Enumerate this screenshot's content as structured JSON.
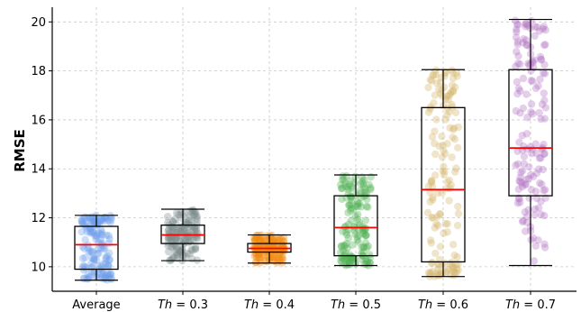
{
  "chart_data": {
    "type": "box",
    "ylabel": "RMSE",
    "xlabel": "",
    "ylim": [
      9,
      20.6
    ],
    "yticks": [
      10,
      12,
      14,
      16,
      18,
      20
    ],
    "grid": true,
    "categories": [
      {
        "prefix": "",
        "label": "Average"
      },
      {
        "prefix": "Th",
        "label": " = 0.3"
      },
      {
        "prefix": "Th",
        "label": " = 0.4"
      },
      {
        "prefix": "Th",
        "label": " = 0.5"
      },
      {
        "prefix": "Th",
        "label": " = 0.6"
      },
      {
        "prefix": "Th",
        "label": " = 0.7"
      }
    ],
    "boxes": [
      {
        "min": 9.45,
        "q1": 9.9,
        "median": 10.9,
        "q3": 11.65,
        "max": 12.1,
        "color": "#6d9eeb"
      },
      {
        "min": 10.25,
        "q1": 10.95,
        "median": 11.3,
        "q3": 11.7,
        "max": 12.35,
        "color": "#7f8c8d"
      },
      {
        "min": 10.15,
        "q1": 10.6,
        "median": 10.75,
        "q3": 10.95,
        "max": 11.3,
        "color": "#f0890f"
      },
      {
        "min": 10.05,
        "q1": 10.45,
        "median": 11.6,
        "q3": 12.9,
        "max": 13.75,
        "color": "#4caf50"
      },
      {
        "min": 9.6,
        "q1": 10.2,
        "median": 13.15,
        "q3": 16.5,
        "max": 18.05,
        "color": "#d4b56a"
      },
      {
        "min": 10.05,
        "q1": 12.9,
        "median": 14.85,
        "q3": 18.05,
        "max": 20.1,
        "color": "#b374c4"
      }
    ],
    "median_color": "#ff0000"
  }
}
